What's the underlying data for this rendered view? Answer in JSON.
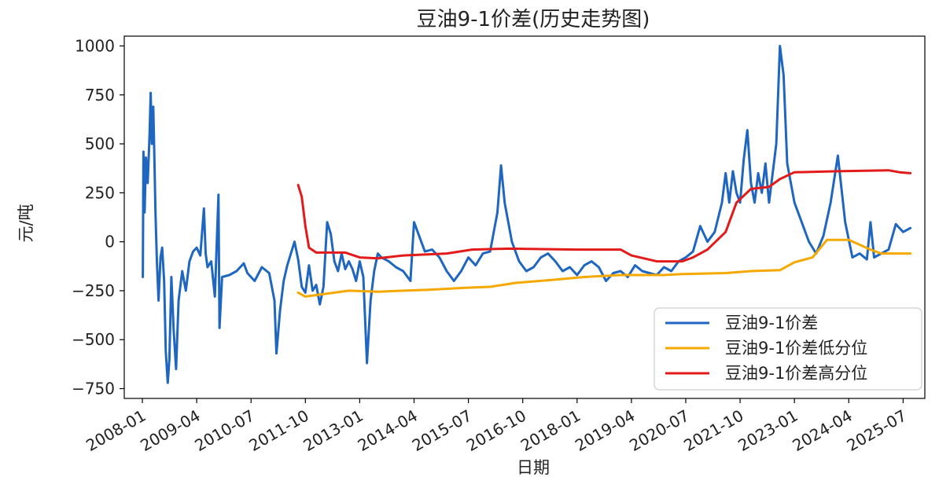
{
  "chart_data": {
    "type": "line",
    "title": "豆油9-1价差(历史走势图)",
    "xlabel": "日期",
    "ylabel": "元/吨",
    "ylim": [
      -800,
      1050
    ],
    "yticks": [
      -750,
      -500,
      -250,
      0,
      250,
      500,
      750,
      1000
    ],
    "xticks": [
      "2008-01",
      "2009-04",
      "2010-07",
      "2011-10",
      "2013-01",
      "2014-04",
      "2015-07",
      "2016-10",
      "2018-01",
      "2019-04",
      "2020-07",
      "2021-10",
      "2023-01",
      "2024-04",
      "2025-07"
    ],
    "xlim": [
      "2007-08",
      "2026-01"
    ],
    "grid": false,
    "legend_position": "lower right",
    "series": [
      {
        "name": "豆油9-1价差",
        "color": "#1f66c1",
        "points": [
          [
            "2008-01-05",
            -180
          ],
          [
            "2008-01-10",
            460
          ],
          [
            "2008-01-20",
            150
          ],
          [
            "2008-02-01",
            430
          ],
          [
            "2008-02-15",
            300
          ],
          [
            "2008-03-01",
            550
          ],
          [
            "2008-03-10",
            760
          ],
          [
            "2008-03-20",
            500
          ],
          [
            "2008-04-01",
            690
          ],
          [
            "2008-04-10",
            450
          ],
          [
            "2008-04-20",
            150
          ],
          [
            "2008-05-01",
            -100
          ],
          [
            "2008-05-15",
            -300
          ],
          [
            "2008-06-01",
            -80
          ],
          [
            "2008-06-15",
            -30
          ],
          [
            "2008-07-01",
            -200
          ],
          [
            "2008-07-15",
            -560
          ],
          [
            "2008-08-01",
            -720
          ],
          [
            "2008-08-15",
            -600
          ],
          [
            "2008-09-01",
            -180
          ],
          [
            "2008-09-20",
            -450
          ],
          [
            "2008-10-10",
            -650
          ],
          [
            "2008-11-01",
            -300
          ],
          [
            "2008-12-01",
            -150
          ],
          [
            "2009-01-01",
            -250
          ],
          [
            "2009-02-01",
            -100
          ],
          [
            "2009-03-01",
            -50
          ],
          [
            "2009-04-01",
            -30
          ],
          [
            "2009-05-01",
            -70
          ],
          [
            "2009-06-01",
            170
          ],
          [
            "2009-06-15",
            -60
          ],
          [
            "2009-07-01",
            -130
          ],
          [
            "2009-08-01",
            -100
          ],
          [
            "2009-09-01",
            -280
          ],
          [
            "2009-10-01",
            240
          ],
          [
            "2009-10-10",
            -440
          ],
          [
            "2009-11-01",
            -180
          ],
          [
            "2010-01-01",
            -170
          ],
          [
            "2010-03-01",
            -150
          ],
          [
            "2010-05-01",
            -110
          ],
          [
            "2010-06-01",
            -160
          ],
          [
            "2010-08-01",
            -200
          ],
          [
            "2010-10-01",
            -130
          ],
          [
            "2010-12-01",
            -160
          ],
          [
            "2011-01-15",
            -300
          ],
          [
            "2011-02-01",
            -570
          ],
          [
            "2011-03-01",
            -350
          ],
          [
            "2011-04-01",
            -200
          ],
          [
            "2011-05-01",
            -120
          ],
          [
            "2011-06-01",
            -60
          ],
          [
            "2011-07-01",
            0
          ],
          [
            "2011-08-01",
            -90
          ],
          [
            "2011-09-01",
            -230
          ],
          [
            "2011-10-01",
            -260
          ],
          [
            "2011-11-01",
            -120
          ],
          [
            "2011-12-01",
            -250
          ],
          [
            "2012-01-01",
            -220
          ],
          [
            "2012-02-01",
            -320
          ],
          [
            "2012-03-01",
            -230
          ],
          [
            "2012-04-01",
            100
          ],
          [
            "2012-05-01",
            40
          ],
          [
            "2012-06-01",
            -100
          ],
          [
            "2012-07-01",
            -150
          ],
          [
            "2012-08-01",
            -60
          ],
          [
            "2012-09-01",
            -140
          ],
          [
            "2012-10-01",
            -100
          ],
          [
            "2012-11-01",
            -140
          ],
          [
            "2012-12-01",
            -200
          ],
          [
            "2013-01-01",
            -100
          ],
          [
            "2013-02-01",
            -180
          ],
          [
            "2013-03-01",
            -620
          ],
          [
            "2013-04-01",
            -300
          ],
          [
            "2013-05-01",
            -150
          ],
          [
            "2013-06-01",
            -60
          ],
          [
            "2013-07-01",
            -80
          ],
          [
            "2013-09-01",
            -100
          ],
          [
            "2013-11-01",
            -130
          ],
          [
            "2014-01-01",
            -150
          ],
          [
            "2014-03-01",
            -200
          ],
          [
            "2014-04-01",
            100
          ],
          [
            "2014-05-01",
            50
          ],
          [
            "2014-07-01",
            -50
          ],
          [
            "2014-09-01",
            -40
          ],
          [
            "2014-11-01",
            -80
          ],
          [
            "2015-01-01",
            -150
          ],
          [
            "2015-03-01",
            -200
          ],
          [
            "2015-05-01",
            -150
          ],
          [
            "2015-07-01",
            -80
          ],
          [
            "2015-09-01",
            -120
          ],
          [
            "2015-11-01",
            -60
          ],
          [
            "2016-01-01",
            -50
          ],
          [
            "2016-03-01",
            150
          ],
          [
            "2016-04-01",
            390
          ],
          [
            "2016-05-01",
            200
          ],
          [
            "2016-07-01",
            0
          ],
          [
            "2016-09-01",
            -100
          ],
          [
            "2016-11-01",
            -150
          ],
          [
            "2017-01-01",
            -130
          ],
          [
            "2017-03-01",
            -80
          ],
          [
            "2017-05-01",
            -60
          ],
          [
            "2017-07-01",
            -100
          ],
          [
            "2017-09-01",
            -150
          ],
          [
            "2017-11-01",
            -130
          ],
          [
            "2018-01-01",
            -170
          ],
          [
            "2018-03-01",
            -120
          ],
          [
            "2018-05-01",
            -100
          ],
          [
            "2018-07-01",
            -130
          ],
          [
            "2018-09-01",
            -200
          ],
          [
            "2018-11-01",
            -160
          ],
          [
            "2019-01-01",
            -150
          ],
          [
            "2019-03-01",
            -180
          ],
          [
            "2019-05-01",
            -120
          ],
          [
            "2019-07-01",
            -150
          ],
          [
            "2019-09-01",
            -160
          ],
          [
            "2019-11-01",
            -170
          ],
          [
            "2020-01-01",
            -130
          ],
          [
            "2020-03-01",
            -150
          ],
          [
            "2020-05-01",
            -100
          ],
          [
            "2020-07-01",
            -80
          ],
          [
            "2020-09-01",
            -50
          ],
          [
            "2020-11-01",
            80
          ],
          [
            "2021-01-01",
            0
          ],
          [
            "2021-03-01",
            50
          ],
          [
            "2021-05-01",
            200
          ],
          [
            "2021-06-01",
            350
          ],
          [
            "2021-07-01",
            200
          ],
          [
            "2021-08-01",
            360
          ],
          [
            "2021-09-01",
            250
          ],
          [
            "2021-10-01",
            200
          ],
          [
            "2021-11-01",
            420
          ],
          [
            "2021-12-01",
            570
          ],
          [
            "2022-01-01",
            300
          ],
          [
            "2022-02-01",
            200
          ],
          [
            "2022-03-01",
            350
          ],
          [
            "2022-04-01",
            250
          ],
          [
            "2022-05-01",
            400
          ],
          [
            "2022-06-01",
            200
          ],
          [
            "2022-07-01",
            350
          ],
          [
            "2022-08-01",
            500
          ],
          [
            "2022-09-01",
            1000
          ],
          [
            "2022-10-01",
            850
          ],
          [
            "2022-11-01",
            400
          ],
          [
            "2022-12-01",
            300
          ],
          [
            "2023-01-01",
            200
          ],
          [
            "2023-03-01",
            100
          ],
          [
            "2023-05-01",
            0
          ],
          [
            "2023-07-01",
            -60
          ],
          [
            "2023-09-01",
            30
          ],
          [
            "2023-11-01",
            200
          ],
          [
            "2024-01-01",
            440
          ],
          [
            "2024-03-01",
            100
          ],
          [
            "2024-05-01",
            -80
          ],
          [
            "2024-07-01",
            -60
          ],
          [
            "2024-09-01",
            -90
          ],
          [
            "2024-10-01",
            100
          ],
          [
            "2024-11-01",
            -80
          ],
          [
            "2025-01-01",
            -60
          ],
          [
            "2025-03-01",
            -40
          ],
          [
            "2025-05-01",
            90
          ],
          [
            "2025-07-01",
            50
          ],
          [
            "2025-09-01",
            70
          ]
        ]
      },
      {
        "name": "豆油9-1价差低分位",
        "color": "#f5a800",
        "points": [
          [
            "2011-08-01",
            -260
          ],
          [
            "2011-10-01",
            -280
          ],
          [
            "2012-06-01",
            -260
          ],
          [
            "2012-10-01",
            -250
          ],
          [
            "2013-06-01",
            -255
          ],
          [
            "2014-01-01",
            -250
          ],
          [
            "2014-08-01",
            -245
          ],
          [
            "2015-01-01",
            -240
          ],
          [
            "2015-06-01",
            -235
          ],
          [
            "2016-01-01",
            -230
          ],
          [
            "2016-08-01",
            -210
          ],
          [
            "2017-06-01",
            -195
          ],
          [
            "2018-03-01",
            -180
          ],
          [
            "2019-01-01",
            -170
          ],
          [
            "2020-01-01",
            -170
          ],
          [
            "2020-06-01",
            -165
          ],
          [
            "2021-06-01",
            -160
          ],
          [
            "2022-01-01",
            -150
          ],
          [
            "2022-09-01",
            -145
          ],
          [
            "2023-01-01",
            -105
          ],
          [
            "2023-06-01",
            -80
          ],
          [
            "2023-10-01",
            10
          ],
          [
            "2024-04-01",
            10
          ],
          [
            "2024-10-01",
            -40
          ],
          [
            "2025-01-01",
            -60
          ],
          [
            "2025-09-01",
            -60
          ]
        ]
      },
      {
        "name": "豆油9-1价差高分位",
        "color": "#e21a1a",
        "points": [
          [
            "2011-08-01",
            290
          ],
          [
            "2011-09-01",
            230
          ],
          [
            "2011-10-01",
            80
          ],
          [
            "2011-11-01",
            -30
          ],
          [
            "2012-01-01",
            -55
          ],
          [
            "2012-09-01",
            -55
          ],
          [
            "2013-01-01",
            -80
          ],
          [
            "2013-06-01",
            -85
          ],
          [
            "2014-01-01",
            -70
          ],
          [
            "2015-01-01",
            -60
          ],
          [
            "2015-08-01",
            -40
          ],
          [
            "2016-06-01",
            -35
          ],
          [
            "2018-01-01",
            -40
          ],
          [
            "2019-01-01",
            -40
          ],
          [
            "2019-04-01",
            -70
          ],
          [
            "2019-11-01",
            -100
          ],
          [
            "2020-06-01",
            -100
          ],
          [
            "2020-09-01",
            -80
          ],
          [
            "2021-01-01",
            -40
          ],
          [
            "2021-06-01",
            50
          ],
          [
            "2021-09-01",
            200
          ],
          [
            "2022-01-01",
            270
          ],
          [
            "2022-06-01",
            280
          ],
          [
            "2022-09-01",
            320
          ],
          [
            "2023-01-01",
            355
          ],
          [
            "2024-01-01",
            360
          ],
          [
            "2025-03-01",
            365
          ],
          [
            "2025-06-01",
            355
          ],
          [
            "2025-09-01",
            350
          ]
        ]
      }
    ]
  }
}
